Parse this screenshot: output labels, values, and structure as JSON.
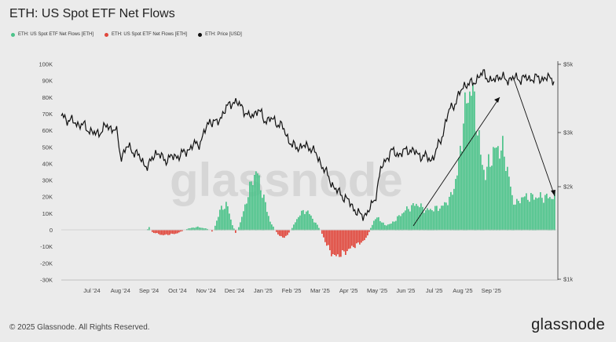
{
  "title": "ETH: US Spot ETF Net Flows",
  "footer": "© 2025 Glassnode. All Rights Reserved.",
  "brand": "glassnode",
  "watermark": "glassnode",
  "colors": {
    "positive": "#4cc38a",
    "negative": "#e0473c",
    "price": "#111111"
  },
  "chart_data": {
    "type": "bar",
    "legend_placement": "top-left",
    "series": [
      {
        "name": "ETH: US Spot ETF Net Flows [ETH]",
        "color": "#4cc38a",
        "kind": "bar"
      },
      {
        "name": "ETH: US Spot ETF Net Flows [ETH]",
        "color": "#e0473c",
        "kind": "bar"
      },
      {
        "name": "ETH: Price [USD]",
        "color": "#111111",
        "kind": "line"
      }
    ],
    "x_ticks": [
      "Jul '24",
      "Aug '24",
      "Sep '24",
      "Oct '24",
      "Nov '24",
      "Dec '24",
      "Jan '25",
      "Feb '25",
      "Mar '25",
      "Apr '25",
      "May '25",
      "Jun '25",
      "Jul '25",
      "Aug '25",
      "Sep '25"
    ],
    "y_left": {
      "ticks": [
        "100K",
        "90K",
        "80K",
        "70K",
        "60K",
        "50K",
        "40K",
        "30K",
        "20K",
        "10K",
        "0",
        "-10K",
        "-20K",
        "-30K"
      ],
      "min": -30000,
      "max": 100000
    },
    "y_right": {
      "ticks": [
        "$5k",
        "$3k",
        "$2k",
        "$1k"
      ],
      "values": [
        5000,
        3000,
        2000,
        1000
      ],
      "scale": "log"
    },
    "flows_keypoints": [
      [
        0,
        0
      ],
      [
        3.3,
        0
      ],
      [
        3.4,
        2000
      ],
      [
        3.5,
        -1000
      ],
      [
        4.0,
        -3000
      ],
      [
        4.6,
        -2000
      ],
      [
        5.1,
        1000
      ],
      [
        5.5,
        2000
      ],
      [
        5.9,
        1000
      ],
      [
        6.2,
        -1000
      ],
      [
        6.5,
        12000
      ],
      [
        6.8,
        16000
      ],
      [
        7.0,
        5000
      ],
      [
        7.2,
        -2000
      ],
      [
        7.4,
        5000
      ],
      [
        7.9,
        30000
      ],
      [
        8.1,
        36000
      ],
      [
        8.4,
        20000
      ],
      [
        8.7,
        5000
      ],
      [
        9.0,
        -2000
      ],
      [
        9.3,
        -5000
      ],
      [
        9.6,
        0
      ],
      [
        10.0,
        10000
      ],
      [
        10.3,
        12000
      ],
      [
        10.6,
        6000
      ],
      [
        10.9,
        0
      ],
      [
        11.2,
        -10000
      ],
      [
        11.5,
        -16000
      ],
      [
        11.9,
        -14000
      ],
      [
        12.3,
        -10000
      ],
      [
        12.6,
        -8000
      ],
      [
        12.9,
        -5000
      ],
      [
        13.2,
        5000
      ],
      [
        13.4,
        8000
      ],
      [
        13.7,
        3000
      ],
      [
        14.0,
        4000
      ],
      [
        14.6,
        12000
      ],
      [
        15.1,
        16000
      ],
      [
        15.5,
        12000
      ],
      [
        15.9,
        13000
      ],
      [
        16.2,
        14000
      ],
      [
        16.6,
        20000
      ],
      [
        16.9,
        35000
      ],
      [
        17.1,
        60000
      ],
      [
        17.3,
        80000
      ],
      [
        17.5,
        86000
      ],
      [
        17.7,
        70000
      ],
      [
        17.9,
        45000
      ],
      [
        18.1,
        33000
      ],
      [
        18.3,
        42000
      ],
      [
        18.6,
        50000
      ],
      [
        18.9,
        48000
      ],
      [
        19.1,
        35000
      ],
      [
        19.3,
        18000
      ],
      [
        19.5,
        16000
      ],
      [
        19.7,
        20000
      ]
    ],
    "price_keypoints": [
      [
        0,
        3400
      ],
      [
        0.5,
        3250
      ],
      [
        1,
        3150
      ],
      [
        1.5,
        2950
      ],
      [
        2,
        3150
      ],
      [
        2.4,
        3050
      ],
      [
        2.6,
        2500
      ],
      [
        2.9,
        2700
      ],
      [
        3.2,
        2600
      ],
      [
        3.5,
        2450
      ],
      [
        3.8,
        2300
      ],
      [
        4.1,
        2600
      ],
      [
        4.5,
        2450
      ],
      [
        4.9,
        2500
      ],
      [
        5.3,
        2550
      ],
      [
        5.7,
        2700
      ],
      [
        6.1,
        2800
      ],
      [
        6.5,
        3300
      ],
      [
        6.8,
        3200
      ],
      [
        7.1,
        3500
      ],
      [
        7.5,
        3800
      ],
      [
        7.9,
        3650
      ],
      [
        8.2,
        3350
      ],
      [
        8.6,
        3550
      ],
      [
        8.9,
        3300
      ],
      [
        9.3,
        3300
      ],
      [
        9.7,
        3100
      ],
      [
        10.1,
        2700
      ],
      [
        10.5,
        2700
      ],
      [
        10.9,
        2700
      ],
      [
        11.2,
        2500
      ],
      [
        11.6,
        2200
      ],
      [
        12.0,
        1950
      ],
      [
        12.4,
        1850
      ],
      [
        12.8,
        1700
      ],
      [
        13.1,
        1600
      ],
      [
        13.4,
        1650
      ],
      [
        13.7,
        1800
      ],
      [
        14.0,
        2300
      ],
      [
        14.4,
        2600
      ],
      [
        14.8,
        2550
      ],
      [
        15.2,
        2650
      ],
      [
        15.6,
        2550
      ],
      [
        15.9,
        2500
      ],
      [
        16.2,
        2450
      ],
      [
        16.4,
        2600
      ],
      [
        16.7,
        3000
      ],
      [
        17.0,
        3600
      ],
      [
        17.3,
        3800
      ],
      [
        17.6,
        4300
      ],
      [
        17.9,
        4300
      ],
      [
        18.2,
        4500
      ],
      [
        18.5,
        4700
      ],
      [
        18.8,
        4350
      ],
      [
        19.1,
        4600
      ],
      [
        19.4,
        4450
      ],
      [
        19.7,
        4500
      ]
    ]
  }
}
